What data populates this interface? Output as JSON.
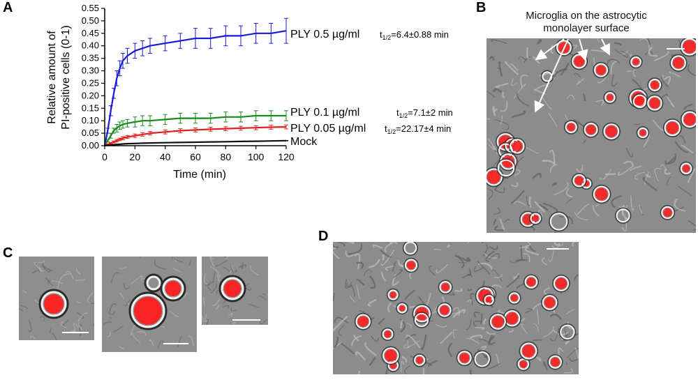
{
  "panels": {
    "a": {
      "letter": "A"
    },
    "b": {
      "letter": "B",
      "caption_line1": "Microglia on the astrocytic",
      "caption_line2": "monolayer surface"
    },
    "c": {
      "letter": "C"
    },
    "d": {
      "letter": "D"
    }
  },
  "chart_data": {
    "type": "line",
    "title": "",
    "xlabel": "Time (min)",
    "ylabel_line1": "Relative amount of",
    "ylabel_line2": "PI-positive cells (0-1)",
    "xlim": [
      0,
      120
    ],
    "ylim": [
      0,
      0.55
    ],
    "xticks": [
      0,
      20,
      40,
      60,
      80,
      100,
      120
    ],
    "yticks": [
      0.0,
      0.05,
      0.1,
      0.15,
      0.2,
      0.25,
      0.3,
      0.35,
      0.4,
      0.45,
      0.5,
      0.55
    ],
    "x": [
      0,
      2,
      4,
      6,
      8,
      10,
      12,
      15,
      20,
      25,
      30,
      40,
      50,
      60,
      70,
      80,
      90,
      100,
      110,
      120
    ],
    "series": [
      {
        "name": "PLY 0.5 µg/ml",
        "half_time": "t1/2=6.4±0.88 min",
        "color": "#1a1adb",
        "values": [
          0.0,
          0.06,
          0.14,
          0.21,
          0.27,
          0.31,
          0.34,
          0.36,
          0.38,
          0.39,
          0.4,
          0.41,
          0.42,
          0.43,
          0.43,
          0.44,
          0.44,
          0.45,
          0.45,
          0.46
        ],
        "error": [
          0.0,
          0.01,
          0.02,
          0.02,
          0.03,
          0.03,
          0.03,
          0.03,
          0.03,
          0.03,
          0.03,
          0.03,
          0.03,
          0.04,
          0.04,
          0.04,
          0.04,
          0.04,
          0.04,
          0.05
        ]
      },
      {
        "name": "PLY 0.1 µg/ml",
        "half_time": "t1/2=7.1±2 min",
        "color": "#1a8a1a",
        "values": [
          0.0,
          0.02,
          0.04,
          0.06,
          0.07,
          0.08,
          0.085,
          0.09,
          0.095,
          0.1,
          0.1,
          0.105,
          0.11,
          0.11,
          0.11,
          0.115,
          0.115,
          0.12,
          0.12,
          0.12
        ],
        "error": [
          0.0,
          0.005,
          0.01,
          0.01,
          0.015,
          0.015,
          0.015,
          0.015,
          0.02,
          0.02,
          0.02,
          0.02,
          0.02,
          0.02,
          0.02,
          0.02,
          0.02,
          0.02,
          0.02,
          0.02
        ]
      },
      {
        "name": "PLY 0.05 µg/ml",
        "half_time": "t1/2=22.17±4 min",
        "color": "#e02020",
        "values": [
          0.0,
          0.005,
          0.01,
          0.015,
          0.02,
          0.025,
          0.03,
          0.035,
          0.04,
          0.045,
          0.05,
          0.055,
          0.06,
          0.063,
          0.066,
          0.068,
          0.07,
          0.072,
          0.074,
          0.075
        ],
        "error": [
          0.0,
          0.002,
          0.003,
          0.004,
          0.005,
          0.005,
          0.006,
          0.006,
          0.007,
          0.007,
          0.007,
          0.008,
          0.008,
          0.008,
          0.008,
          0.008,
          0.008,
          0.008,
          0.008,
          0.008
        ]
      },
      {
        "name": "Mock",
        "half_time": "",
        "color": "#111111",
        "values": [
          0.0,
          0.002,
          0.003,
          0.004,
          0.005,
          0.006,
          0.007,
          0.008,
          0.009,
          0.01,
          0.011,
          0.012,
          0.013,
          0.014,
          0.015,
          0.016,
          0.017,
          0.018,
          0.019,
          0.02
        ],
        "error": [
          0.0,
          0.001,
          0.001,
          0.001,
          0.001,
          0.001,
          0.001,
          0.001,
          0.001,
          0.001,
          0.001,
          0.001,
          0.001,
          0.001,
          0.001,
          0.001,
          0.001,
          0.001,
          0.001,
          0.001
        ]
      }
    ]
  },
  "colors": {
    "pi_stain": "#ff2020",
    "bf_background": "#8a8a8a"
  }
}
